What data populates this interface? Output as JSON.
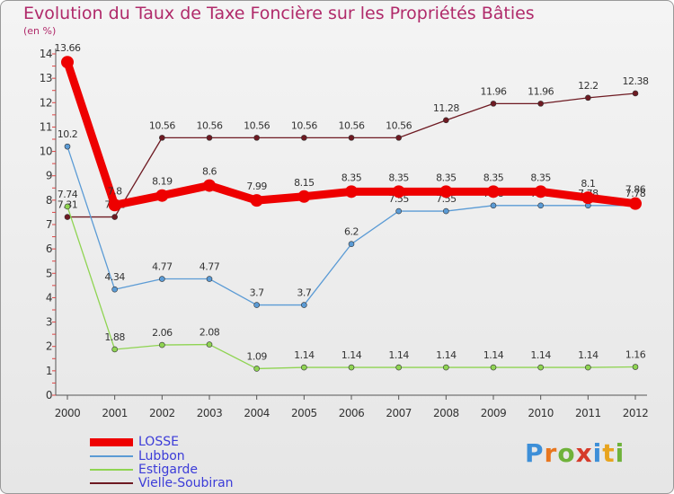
{
  "chart_data": {
    "type": "line",
    "title": "Evolution du Taux de Taxe Foncière sur les Propriétés Bâties",
    "ylabel": "(en %)",
    "xlabel": "",
    "ylim": [
      0,
      14
    ],
    "yticks": [
      0,
      1,
      2,
      3,
      4,
      5,
      6,
      7,
      8,
      9,
      10,
      11,
      12,
      13,
      14
    ],
    "categories": [
      "2000",
      "2001",
      "2002",
      "2003",
      "2004",
      "2005",
      "2006",
      "2007",
      "2008",
      "2009",
      "2010",
      "2011",
      "2012"
    ],
    "series": [
      {
        "name": "Vielle-Soubiran",
        "color": "#6e1a22",
        "values": [
          7.31,
          7.31,
          10.56,
          10.56,
          10.56,
          10.56,
          10.56,
          10.56,
          11.28,
          11.96,
          11.96,
          12.2,
          12.38
        ],
        "labels": [
          "7.31",
          "7.31",
          "10.56",
          "10.56",
          "10.56",
          "10.56",
          "10.56",
          "10.56",
          "11.28",
          "11.96",
          "11.96",
          "12.2",
          "12.38"
        ]
      },
      {
        "name": "Estigarde",
        "color": "#8fd452",
        "values": [
          7.74,
          1.88,
          2.06,
          2.08,
          1.09,
          1.14,
          1.14,
          1.14,
          1.14,
          1.14,
          1.14,
          1.14,
          1.16
        ],
        "labels": [
          "7.74",
          "1.88",
          "2.06",
          "2.08",
          "1.09",
          "1.14",
          "1.14",
          "1.14",
          "1.14",
          "1.14",
          "1.14",
          "1.14",
          "1.16"
        ]
      },
      {
        "name": "Lubbon",
        "color": "#5b9bd5",
        "values": [
          10.2,
          4.34,
          4.77,
          4.77,
          3.7,
          3.7,
          6.2,
          7.55,
          7.55,
          7.78,
          7.78,
          7.78,
          7.78
        ],
        "labels": [
          "10.2",
          "4.34",
          "4.77",
          "4.77",
          "3.7",
          "3.7",
          "6.2",
          "7.55",
          "7.55",
          "7.78",
          "7.78",
          "7.78",
          "7.78"
        ]
      },
      {
        "name": "LOSSE",
        "color": "#ee0000",
        "values": [
          13.66,
          7.8,
          8.19,
          8.6,
          7.99,
          8.15,
          8.35,
          8.35,
          8.35,
          8.35,
          8.35,
          8.1,
          7.86
        ],
        "labels": [
          "13.66",
          "7.8",
          "8.19",
          "8.6",
          "7.99",
          "8.15",
          "8.35",
          "8.35",
          "8.35",
          "8.35",
          "8.35",
          "8.1",
          "7.86"
        ]
      }
    ],
    "legend_order": [
      "LOSSE",
      "Lubbon",
      "Estigarde",
      "Vielle-Soubiran"
    ],
    "legend_position": "bottom-left",
    "grid": false
  },
  "legend": {
    "items": [
      {
        "name": "LOSSE",
        "color": "#ee0000"
      },
      {
        "name": "Lubbon",
        "color": "#5b9bd5"
      },
      {
        "name": "Estigarde",
        "color": "#8fd452"
      },
      {
        "name": "Vielle-Soubiran",
        "color": "#6e1a22"
      }
    ]
  },
  "brand": {
    "letters": [
      "P",
      "r",
      "o",
      "x",
      "i",
      "t",
      "i"
    ],
    "colors": [
      "#3d8fd8",
      "#e8761e",
      "#6fb23a",
      "#d63a2a",
      "#3d8fd8",
      "#e8a41e",
      "#6fb23a"
    ]
  }
}
